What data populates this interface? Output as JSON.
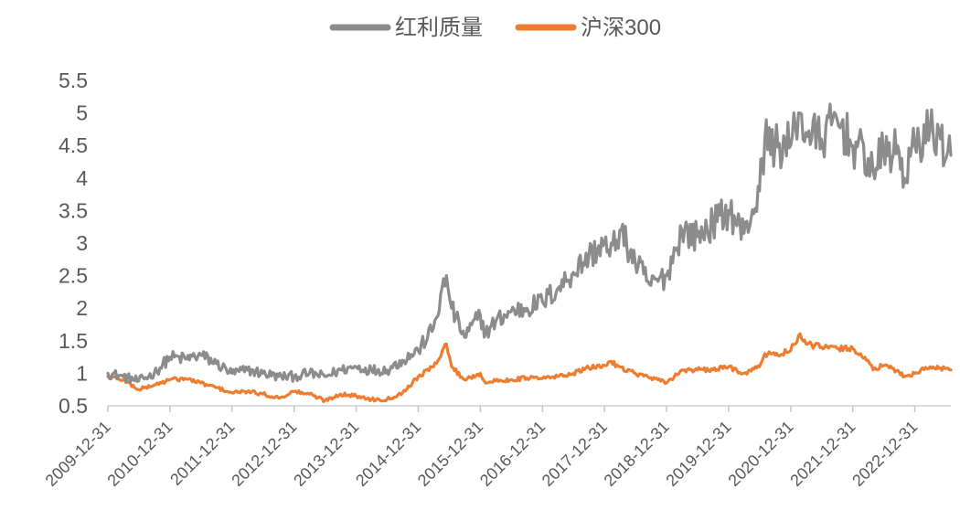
{
  "chart_data": {
    "type": "line",
    "title": "",
    "xlabel": "",
    "ylabel": "",
    "legend_position": "top-center",
    "grid": false,
    "ylim": [
      0.5,
      5.5
    ],
    "y_ticks": [
      "0.5",
      "1",
      "1.5",
      "2",
      "2.5",
      "3",
      "3.5",
      "4",
      "4.5",
      "5",
      "5.5"
    ],
    "x_ticks": [
      "2009-12-31",
      "2010-12-31",
      "2011-12-31",
      "2012-12-31",
      "2013-12-31",
      "2014-12-31",
      "2015-12-31",
      "2016-12-31",
      "2017-12-31",
      "2018-12-31",
      "2019-12-31",
      "2020-12-31",
      "2021-12-31",
      "2022-12-31"
    ],
    "xlim": [
      "2009-12-31",
      "2023-07-31"
    ],
    "series": [
      {
        "name": "红利质量",
        "color": "#8c8c8c",
        "x": [
          "2009-12-31",
          "2010-03-31",
          "2010-06-30",
          "2010-09-30",
          "2010-12-31",
          "2011-03-31",
          "2011-06-30",
          "2011-09-30",
          "2011-12-31",
          "2012-03-31",
          "2012-06-30",
          "2012-09-30",
          "2012-12-31",
          "2013-03-31",
          "2013-06-30",
          "2013-09-30",
          "2013-12-31",
          "2014-03-31",
          "2014-06-30",
          "2014-09-30",
          "2014-12-31",
          "2015-03-31",
          "2015-06-15",
          "2015-07-15",
          "2015-09-30",
          "2015-12-31",
          "2016-01-31",
          "2016-03-31",
          "2016-06-30",
          "2016-09-30",
          "2016-12-31",
          "2017-03-31",
          "2017-06-30",
          "2017-09-30",
          "2017-12-31",
          "2018-01-31",
          "2018-03-31",
          "2018-06-30",
          "2018-09-30",
          "2018-12-31",
          "2019-03-31",
          "2019-06-30",
          "2019-09-30",
          "2019-12-31",
          "2020-03-31",
          "2020-06-30",
          "2020-07-31",
          "2020-09-30",
          "2020-12-31",
          "2021-02-15",
          "2021-03-31",
          "2021-06-30",
          "2021-09-30",
          "2021-12-31",
          "2022-03-31",
          "2022-04-30",
          "2022-06-30",
          "2022-09-30",
          "2022-10-31",
          "2022-12-31",
          "2023-03-31",
          "2023-05-31",
          "2023-07-31"
        ],
        "values": [
          1.0,
          0.95,
          0.88,
          1.0,
          1.25,
          1.22,
          1.28,
          1.15,
          1.0,
          1.05,
          1.0,
          0.95,
          0.95,
          1.0,
          0.95,
          1.05,
          1.1,
          1.05,
          1.05,
          1.2,
          1.35,
          1.7,
          2.5,
          2.0,
          1.55,
          1.9,
          1.6,
          1.8,
          1.95,
          2.0,
          2.1,
          2.3,
          2.55,
          2.8,
          3.0,
          2.8,
          3.2,
          2.7,
          2.35,
          2.5,
          3.2,
          3.1,
          3.3,
          3.5,
          3.15,
          3.8,
          4.6,
          4.5,
          4.5,
          5.0,
          4.7,
          4.6,
          4.9,
          4.5,
          4.3,
          4.1,
          4.4,
          4.4,
          4.0,
          4.5,
          4.75,
          4.6,
          4.35
        ]
      },
      {
        "name": "沪深300",
        "color": "#ed7d31",
        "x": [
          "2009-12-31",
          "2010-03-31",
          "2010-06-30",
          "2010-09-30",
          "2010-12-31",
          "2011-03-31",
          "2011-06-30",
          "2011-09-30",
          "2011-12-31",
          "2012-03-31",
          "2012-06-30",
          "2012-09-30",
          "2012-12-31",
          "2013-03-31",
          "2013-06-30",
          "2013-09-30",
          "2013-12-31",
          "2014-03-31",
          "2014-06-30",
          "2014-09-30",
          "2014-12-31",
          "2015-03-31",
          "2015-06-15",
          "2015-07-15",
          "2015-09-30",
          "2015-12-31",
          "2016-01-31",
          "2016-03-31",
          "2016-06-30",
          "2016-09-30",
          "2016-12-31",
          "2017-03-31",
          "2017-06-30",
          "2017-09-30",
          "2017-12-31",
          "2018-01-31",
          "2018-03-31",
          "2018-06-30",
          "2018-09-30",
          "2018-12-31",
          "2019-03-31",
          "2019-06-30",
          "2019-09-30",
          "2019-12-31",
          "2020-03-31",
          "2020-06-30",
          "2020-07-31",
          "2020-09-30",
          "2020-12-31",
          "2021-02-15",
          "2021-03-31",
          "2021-06-30",
          "2021-09-30",
          "2021-12-31",
          "2022-03-31",
          "2022-04-30",
          "2022-06-30",
          "2022-09-30",
          "2022-10-31",
          "2022-12-31",
          "2023-03-31",
          "2023-05-31",
          "2023-07-31"
        ],
        "values": [
          0.95,
          0.9,
          0.75,
          0.82,
          0.9,
          0.92,
          0.85,
          0.78,
          0.7,
          0.72,
          0.68,
          0.62,
          0.72,
          0.68,
          0.58,
          0.68,
          0.65,
          0.6,
          0.6,
          0.7,
          0.95,
          1.1,
          1.45,
          1.1,
          0.9,
          1.0,
          0.85,
          0.88,
          0.9,
          0.93,
          0.92,
          0.95,
          1.0,
          1.08,
          1.12,
          1.18,
          1.1,
          1.0,
          0.93,
          0.85,
          1.05,
          1.05,
          1.05,
          1.1,
          1.0,
          1.1,
          1.3,
          1.28,
          1.35,
          1.58,
          1.45,
          1.4,
          1.38,
          1.38,
          1.2,
          1.05,
          1.12,
          1.02,
          0.95,
          1.0,
          1.1,
          1.08,
          1.05
        ]
      }
    ]
  }
}
